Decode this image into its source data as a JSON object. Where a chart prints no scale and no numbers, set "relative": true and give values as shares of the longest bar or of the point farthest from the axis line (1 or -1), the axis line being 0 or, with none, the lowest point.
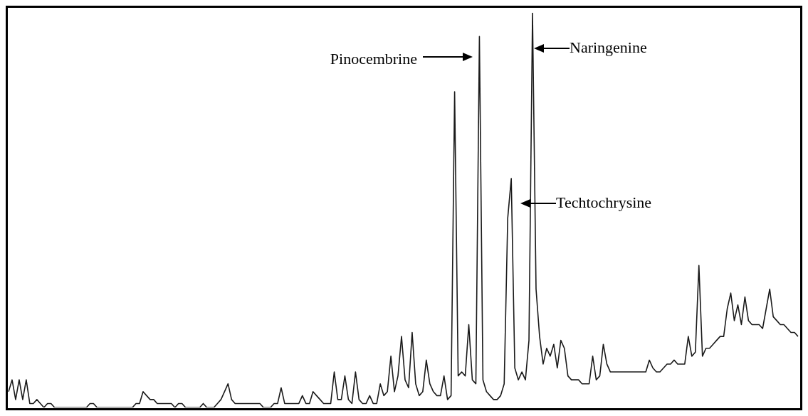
{
  "chart_data": {
    "type": "line",
    "relative": true,
    "color": "#1a1a1a",
    "categories": [
      null,
      null,
      null,
      null,
      null,
      null,
      null,
      null,
      null,
      null,
      null,
      null,
      null,
      null,
      null,
      null,
      null,
      null,
      null,
      null,
      null,
      null,
      null,
      null,
      null,
      null,
      null,
      null,
      null,
      null,
      null,
      null,
      null,
      null,
      null,
      null,
      null,
      null,
      null,
      null,
      null,
      null,
      null,
      null,
      null,
      null,
      null,
      null,
      null,
      null,
      null,
      null,
      null,
      null,
      null,
      null,
      null,
      null,
      null,
      null,
      null,
      null,
      null,
      null,
      null,
      null,
      null,
      null,
      null,
      null,
      null,
      null,
      null,
      null,
      null,
      null,
      null,
      null,
      null,
      null,
      null,
      null,
      null,
      null,
      null,
      null,
      null,
      null,
      null,
      null,
      null,
      null,
      null,
      null,
      null,
      null,
      null,
      null,
      null,
      null,
      null,
      null,
      null,
      null,
      null,
      null,
      null,
      null,
      null,
      null,
      null,
      null,
      null,
      null,
      null,
      null,
      null,
      null,
      null,
      null,
      null,
      null,
      null,
      null,
      null,
      null,
      null,
      null,
      null,
      null,
      null,
      null,
      null,
      null,
      null,
      null,
      null,
      null,
      null,
      null,
      null,
      null,
      null,
      null,
      null,
      null,
      null,
      null,
      null,
      null,
      null,
      null,
      null,
      null,
      null,
      null,
      null,
      null,
      null,
      null,
      null,
      null,
      null,
      null,
      null,
      null,
      null,
      null,
      null,
      null,
      null,
      null,
      null,
      null,
      null,
      null,
      null,
      null,
      null,
      null,
      null,
      null,
      null,
      null,
      null,
      null,
      null,
      null,
      null,
      null,
      null,
      null,
      null,
      null,
      null,
      null,
      null,
      null,
      null,
      null,
      null,
      null,
      null,
      null,
      null,
      null,
      null,
      null,
      null,
      null,
      null,
      null,
      null,
      null,
      null,
      null,
      null,
      null,
      null,
      null,
      null,
      null,
      null,
      null
    ],
    "values": [
      0.04,
      0.07,
      0.02,
      0.07,
      0.02,
      0.07,
      0.01,
      0.01,
      0.02,
      0.01,
      0.0,
      0.01,
      0.01,
      0.0,
      0.0,
      0.0,
      0.0,
      0.0,
      0.0,
      0.0,
      0.0,
      0.0,
      0.0,
      0.01,
      0.01,
      0.0,
      0.0,
      0.0,
      0.0,
      0.0,
      0.0,
      0.0,
      0.0,
      0.0,
      0.0,
      0.0,
      0.01,
      0.01,
      0.04,
      0.03,
      0.02,
      0.02,
      0.01,
      0.01,
      0.01,
      0.01,
      0.01,
      0.0,
      0.01,
      0.01,
      0.0,
      0.0,
      0.0,
      0.0,
      0.0,
      0.01,
      0.0,
      0.0,
      0.0,
      0.01,
      0.02,
      0.04,
      0.06,
      0.02,
      0.01,
      0.01,
      0.01,
      0.01,
      0.01,
      0.01,
      0.01,
      0.01,
      0.0,
      0.0,
      0.0,
      0.01,
      0.01,
      0.05,
      0.01,
      0.01,
      0.01,
      0.01,
      0.01,
      0.03,
      0.01,
      0.01,
      0.04,
      0.03,
      0.02,
      0.01,
      0.01,
      0.01,
      0.09,
      0.02,
      0.02,
      0.08,
      0.02,
      0.01,
      0.09,
      0.02,
      0.01,
      0.01,
      0.03,
      0.01,
      0.01,
      0.06,
      0.03,
      0.04,
      0.13,
      0.04,
      0.08,
      0.18,
      0.07,
      0.05,
      0.19,
      0.06,
      0.03,
      0.04,
      0.12,
      0.06,
      0.04,
      0.03,
      0.03,
      0.08,
      0.02,
      0.03,
      0.8,
      0.08,
      0.09,
      0.08,
      0.21,
      0.07,
      0.06,
      0.94,
      0.07,
      0.04,
      0.03,
      0.02,
      0.02,
      0.03,
      0.06,
      0.48,
      0.58,
      0.1,
      0.07,
      0.09,
      0.07,
      0.17,
      1,
      0.3,
      0.18,
      0.11,
      0.15,
      0.13,
      0.16,
      0.1,
      0.17,
      0.15,
      0.08,
      0.07,
      0.07,
      0.07,
      0.06,
      0.06,
      0.06,
      0.13,
      0.07,
      0.08,
      0.16,
      0.11,
      0.09,
      0.09,
      0.09,
      0.09,
      0.09,
      0.09,
      0.09,
      0.09,
      0.09,
      0.09,
      0.09,
      0.12,
      0.1,
      0.09,
      0.09,
      0.1,
      0.11,
      0.11,
      0.12,
      0.11,
      0.11,
      0.11,
      0.18,
      0.13,
      0.14,
      0.36,
      0.13,
      0.15,
      0.15,
      0.16,
      0.17,
      0.18,
      0.18,
      0.25,
      0.29,
      0.22,
      0.26,
      0.21,
      0.28,
      0.22,
      0.21,
      0.21,
      0.21,
      0.2,
      0.25,
      0.3,
      0.23,
      0.22,
      0.21,
      0.21,
      0.2,
      0.19,
      0.19,
      0.18
    ],
    "annotations": [
      "Pinocembrine",
      "Naringenine",
      "Techtochrysine"
    ]
  }
}
